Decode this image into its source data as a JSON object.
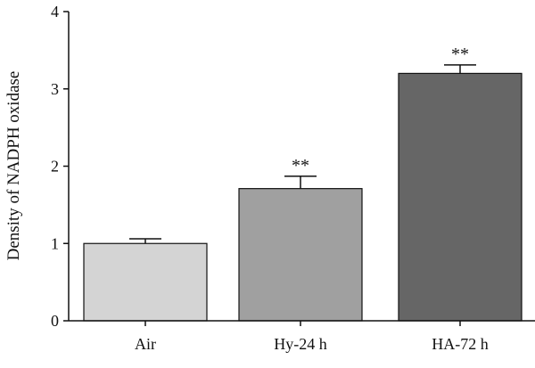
{
  "chart_data": {
    "type": "bar",
    "categories": [
      "Air",
      "Hy-24 h",
      "HA-72 h"
    ],
    "values": [
      1.0,
      1.71,
      3.2
    ],
    "errors": [
      0.06,
      0.16,
      0.11
    ],
    "annotations": [
      "",
      "**",
      "**"
    ],
    "ylabel": "Density of NADPH oxidase",
    "ylim": [
      0,
      4
    ],
    "yticks": [
      0,
      1,
      2,
      3,
      4
    ],
    "grid": false,
    "colors": {
      "bars": [
        "#d4d4d4",
        "#a0a0a0",
        "#666666"
      ],
      "axis": "#111111",
      "edge": "#111111"
    }
  }
}
